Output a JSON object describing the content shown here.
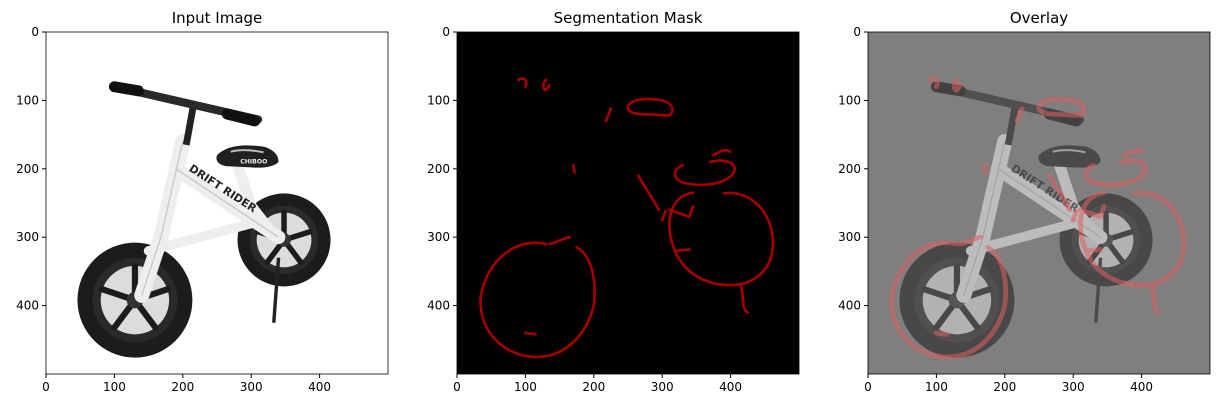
{
  "panels": [
    {
      "title": "Input Image",
      "x_ticks": [
        "0",
        "100",
        "200",
        "300",
        "400"
      ],
      "y_ticks": [
        "0",
        "100",
        "200",
        "300",
        "400"
      ],
      "background": "#ffffff"
    },
    {
      "title": "Segmentation Mask",
      "x_ticks": [
        "0",
        "100",
        "200",
        "300",
        "400"
      ],
      "y_ticks": [
        "0",
        "100",
        "200",
        "300",
        "400"
      ],
      "background": "#000000",
      "mask_color": "#a00000"
    },
    {
      "title": "Overlay",
      "x_ticks": [
        "0",
        "100",
        "200",
        "300",
        "400"
      ],
      "y_ticks": [
        "0",
        "100",
        "200",
        "300",
        "400"
      ],
      "background": "#7f7f7f",
      "overlay_color": "#e06060"
    }
  ],
  "bike": {
    "brand_text": "DRIFT RIDER",
    "seat_text": "CHIBOO",
    "frame_color": "#eeeeee",
    "tire_color": "#1c1c1c"
  }
}
